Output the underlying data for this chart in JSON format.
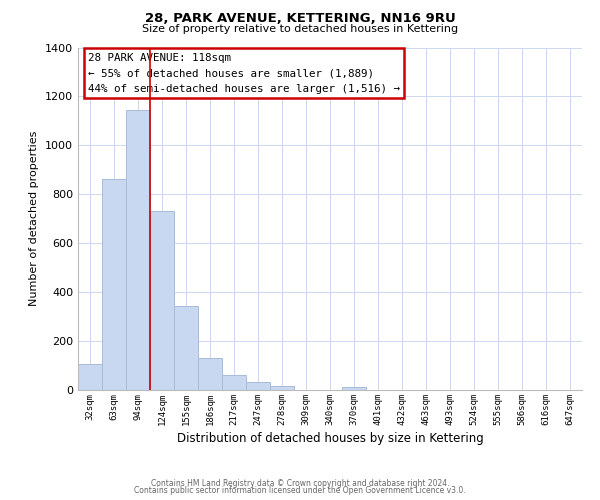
{
  "title": "28, PARK AVENUE, KETTERING, NN16 9RU",
  "subtitle": "Size of property relative to detached houses in Kettering",
  "xlabel": "Distribution of detached houses by size in Kettering",
  "ylabel": "Number of detached properties",
  "bar_labels": [
    "32sqm",
    "63sqm",
    "94sqm",
    "124sqm",
    "155sqm",
    "186sqm",
    "217sqm",
    "247sqm",
    "278sqm",
    "309sqm",
    "340sqm",
    "370sqm",
    "401sqm",
    "432sqm",
    "463sqm",
    "493sqm",
    "524sqm",
    "555sqm",
    "586sqm",
    "616sqm",
    "647sqm"
  ],
  "bar_values": [
    107,
    862,
    1145,
    730,
    345,
    130,
    62,
    32,
    18,
    0,
    0,
    12,
    0,
    0,
    0,
    0,
    0,
    0,
    0,
    0,
    0
  ],
  "bar_color": "#c8d8f0",
  "bar_edge_color": "#a8bcd8",
  "marker_color": "#cc0000",
  "ylim": [
    0,
    1400
  ],
  "yticks": [
    0,
    200,
    400,
    600,
    800,
    1000,
    1200,
    1400
  ],
  "annotation_line1": "28 PARK AVENUE: 118sqm",
  "annotation_line2": "← 55% of detached houses are smaller (1,889)",
  "annotation_line3": "44% of semi-detached houses are larger (1,516) →",
  "footer1": "Contains HM Land Registry data © Crown copyright and database right 2024.",
  "footer2": "Contains public sector information licensed under the Open Government Licence v3.0.",
  "bg_color": "#ffffff",
  "grid_color": "#ccd8ec",
  "marker_bar_index": 2,
  "figwidth": 6.0,
  "figheight": 5.0
}
